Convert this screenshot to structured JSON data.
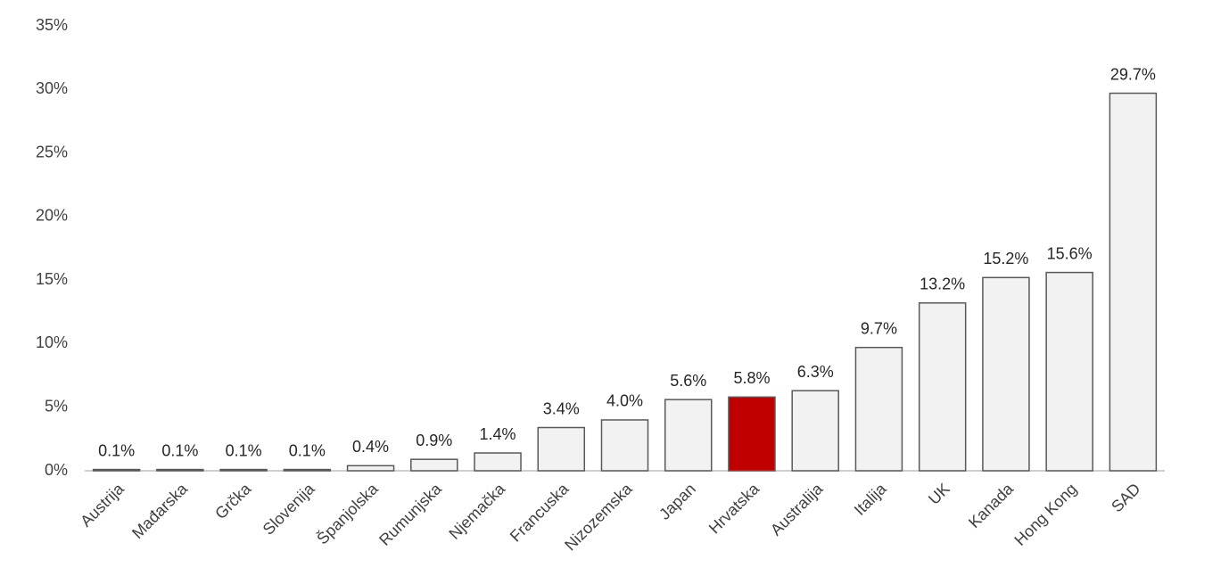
{
  "chart_data": {
    "type": "bar",
    "categories": [
      "Austrija",
      "Mađarska",
      "Grčka",
      "Slovenija",
      "Španjolska",
      "Rumunjska",
      "Njemačka",
      "Francuska",
      "Nizozemska",
      "Japan",
      "Hrvatska",
      "Australija",
      "Italija",
      "UK",
      "Kanada",
      "Hong Kong",
      "SAD"
    ],
    "values": [
      0.1,
      0.1,
      0.1,
      0.1,
      0.4,
      0.9,
      1.4,
      3.4,
      4.0,
      5.6,
      5.8,
      6.3,
      9.7,
      13.2,
      15.2,
      15.6,
      29.7
    ],
    "value_labels": [
      "0.1%",
      "0.1%",
      "0.1%",
      "0.1%",
      "0.4%",
      "0.9%",
      "1.4%",
      "3.4%",
      "4.0%",
      "5.6%",
      "5.8%",
      "6.3%",
      "9.7%",
      "13.2%",
      "15.2%",
      "15.6%",
      "29.7%"
    ],
    "colors": [
      "#f2f2f2",
      "#f2f2f2",
      "#f2f2f2",
      "#f2f2f2",
      "#f2f2f2",
      "#f2f2f2",
      "#f2f2f2",
      "#f2f2f2",
      "#f2f2f2",
      "#f2f2f2",
      "#c00000",
      "#f2f2f2",
      "#f2f2f2",
      "#f2f2f2",
      "#f2f2f2",
      "#f2f2f2",
      "#f2f2f2"
    ],
    "ylim": [
      0,
      35
    ],
    "yticks": [
      {
        "value": 0,
        "label": "0%"
      },
      {
        "value": 5,
        "label": "5%"
      },
      {
        "value": 10,
        "label": "10%"
      },
      {
        "value": 15,
        "label": "15%"
      },
      {
        "value": 20,
        "label": "20%"
      },
      {
        "value": 25,
        "label": "25%"
      },
      {
        "value": 30,
        "label": "30%"
      },
      {
        "value": 35,
        "label": "35%"
      }
    ],
    "grid": false
  }
}
